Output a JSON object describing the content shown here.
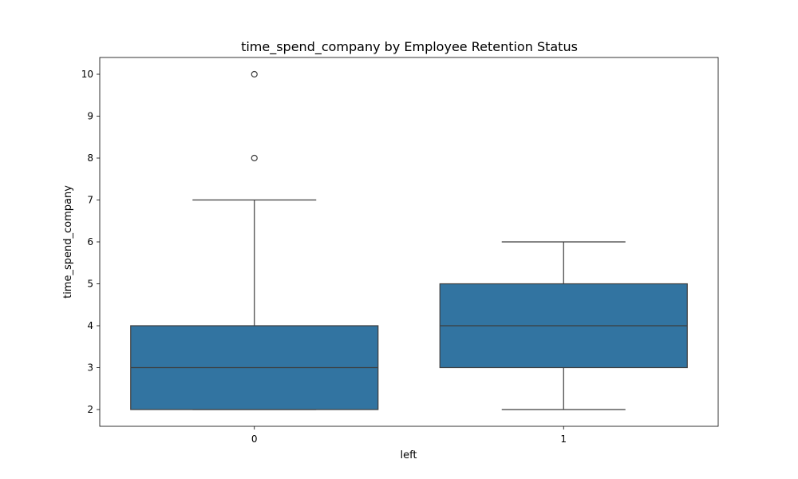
{
  "chart_data": {
    "type": "box",
    "title": "time_spend_company by Employee Retention Status",
    "xlabel": "left",
    "ylabel": "time_spend_company",
    "categories": [
      "0",
      "1"
    ],
    "ylim": [
      1.6,
      10.4
    ],
    "yticks": [
      2,
      3,
      4,
      5,
      6,
      7,
      8,
      9,
      10
    ],
    "ytick_labels": [
      "2",
      "3",
      "4",
      "5",
      "6",
      "7",
      "8",
      "9",
      "10"
    ],
    "box_color": "#3274a1",
    "line_color": "#3d3d3d",
    "series": [
      {
        "category": "0",
        "whisker_low": 2,
        "q1": 2,
        "median": 3,
        "q3": 4,
        "whisker_high": 7,
        "outliers": [
          8,
          10
        ]
      },
      {
        "category": "1",
        "whisker_low": 2,
        "q1": 3,
        "median": 4,
        "q3": 5,
        "whisker_high": 6,
        "outliers": []
      }
    ]
  }
}
